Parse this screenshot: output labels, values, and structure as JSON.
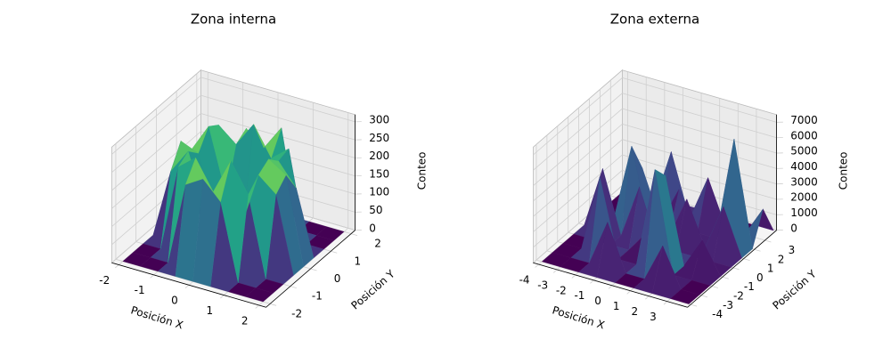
{
  "chart_data": [
    {
      "type": "surface",
      "title": "Zona interna",
      "xlabel": "Posición X",
      "ylabel": "Posición Y",
      "zlabel": "Conteo",
      "colormap": "viridis",
      "x": [
        -2,
        -1.5,
        -1,
        -0.5,
        0,
        0.5,
        1,
        1.5,
        2
      ],
      "y": [
        -2,
        -1.5,
        -1,
        -0.5,
        0,
        0.5,
        1,
        1.5,
        2
      ],
      "z": [
        [
          0,
          0,
          0,
          0,
          0,
          0,
          0,
          0,
          0
        ],
        [
          0,
          0,
          0,
          230,
          260,
          210,
          0,
          0,
          0
        ],
        [
          0,
          0,
          240,
          280,
          200,
          300,
          220,
          0,
          0
        ],
        [
          0,
          190,
          260,
          110,
          60,
          90,
          250,
          210,
          0
        ],
        [
          0,
          250,
          230,
          70,
          40,
          80,
          270,
          240,
          0
        ],
        [
          0,
          200,
          280,
          100,
          50,
          120,
          240,
          180,
          0
        ],
        [
          0,
          0,
          260,
          220,
          290,
          210,
          250,
          0,
          0
        ],
        [
          0,
          0,
          0,
          240,
          200,
          270,
          0,
          0,
          0
        ],
        [
          0,
          0,
          0,
          0,
          0,
          0,
          0,
          0,
          0
        ]
      ],
      "xlim": [
        -2.2,
        2.2
      ],
      "ylim": [
        -2.2,
        2.2
      ],
      "zlim": [
        0,
        320
      ],
      "xticks": [
        -2,
        -1,
        0,
        1,
        2
      ],
      "yticks": [
        -2,
        -1,
        0,
        1,
        2
      ],
      "zticks": [
        0,
        50,
        100,
        150,
        200,
        250,
        300
      ]
    },
    {
      "type": "surface",
      "title": "Zona externa",
      "xlabel": "Posición X",
      "ylabel": "Posición Y",
      "zlabel": "Conteo",
      "colormap": "viridis",
      "x": [
        -4,
        -3,
        -2,
        -1,
        0,
        1,
        2,
        3,
        4
      ],
      "y": [
        -4,
        -3,
        -2,
        -1,
        0,
        1,
        2,
        3,
        4
      ],
      "z": [
        [
          0,
          0,
          0,
          0,
          0,
          0,
          0,
          0,
          0
        ],
        [
          0,
          0,
          0,
          3000,
          0,
          0,
          2500,
          0,
          0
        ],
        [
          0,
          0,
          5000,
          0,
          0,
          6500,
          0,
          0,
          0
        ],
        [
          0,
          0,
          0,
          0,
          1500,
          5500,
          0,
          2000,
          0
        ],
        [
          0,
          4000,
          0,
          3500,
          0,
          0,
          0,
          0,
          0
        ],
        [
          0,
          0,
          5200,
          0,
          0,
          2800,
          0,
          3000,
          0
        ],
        [
          0,
          0,
          3200,
          0,
          2500,
          0,
          0,
          6800,
          0
        ],
        [
          0,
          0,
          0,
          4000,
          0,
          3000,
          0,
          0,
          2000
        ],
        [
          0,
          0,
          0,
          0,
          0,
          0,
          0,
          0,
          0
        ]
      ],
      "xlim": [
        -4.3,
        4.1
      ],
      "ylim": [
        -4.3,
        4.1
      ],
      "zlim": [
        0,
        7500
      ],
      "xticks": [
        -4,
        -3,
        -2,
        -1,
        0,
        1,
        2,
        3
      ],
      "yticks": [
        -4,
        -3,
        -2,
        -1,
        0,
        1,
        2,
        3
      ],
      "zticks": [
        0,
        1000,
        2000,
        3000,
        4000,
        5000,
        6000,
        7000
      ]
    }
  ]
}
